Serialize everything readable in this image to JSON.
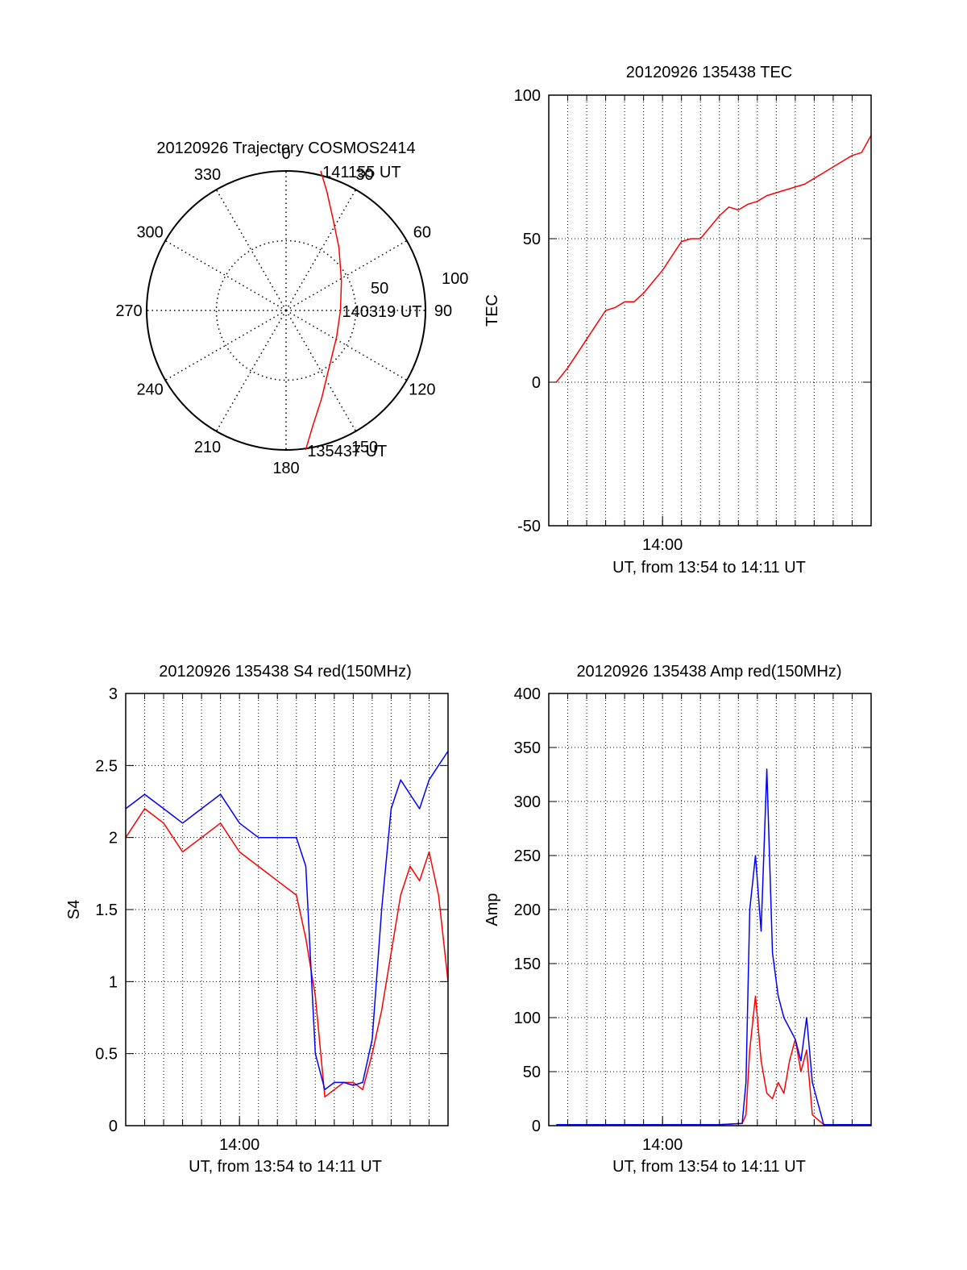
{
  "chart_data": [
    {
      "type": "polar",
      "title": "20120926 Trajectory COSMOS2414",
      "azimuth_labels": [
        "0",
        "30",
        "60",
        "90",
        "120",
        "150",
        "180",
        "210",
        "240",
        "270",
        "300",
        "330"
      ],
      "ring_labels": [
        "50",
        "100"
      ],
      "series": [
        {
          "color": "#ff0000",
          "points": [
            {
              "az": 172,
              "r": 101
            },
            {
              "az": 167,
              "r": 85
            },
            {
              "az": 158,
              "r": 68
            },
            {
              "az": 144,
              "r": 52
            },
            {
              "az": 118,
              "r": 41
            },
            {
              "az": 90,
              "r": 39
            },
            {
              "az": 62,
              "r": 45
            },
            {
              "az": 40,
              "r": 59
            },
            {
              "az": 27,
              "r": 74
            },
            {
              "az": 19,
              "r": 90
            },
            {
              "az": 14,
              "r": 103
            }
          ]
        }
      ],
      "annotations": [
        {
          "text": "141155 UT",
          "az": 14,
          "r": 103
        },
        {
          "text": "140319 UT",
          "az": 90,
          "r": 39
        },
        {
          "text": "135437 UT",
          "az": 172,
          "r": 101
        }
      ]
    },
    {
      "type": "line",
      "title": "20120926 135438 TEC",
      "xlabel": "UT, from 13:54 to 14:11 UT",
      "ylabel": "TEC",
      "xlim": [
        0,
        17
      ],
      "ylim": [
        -50,
        100
      ],
      "yticks": [
        -50,
        0,
        50,
        100
      ],
      "xtick_labels": [
        {
          "x": 6,
          "label": "14:00"
        }
      ],
      "grid": true,
      "series": [
        {
          "color": "#ff0000",
          "x": [
            0.4,
            1.0,
            1.5,
            2.0,
            2.5,
            3.0,
            3.5,
            4.0,
            4.5,
            5.0,
            5.5,
            6.0,
            6.5,
            7.0,
            7.5,
            8.0,
            8.5,
            9.0,
            9.5,
            10.0,
            10.5,
            11.0,
            11.5,
            12.0,
            12.5,
            13.0,
            13.5,
            14.0,
            14.5,
            15.0,
            15.5,
            16.0,
            16.5,
            17.0
          ],
          "y": [
            0,
            5,
            10,
            15,
            20,
            25,
            26,
            28,
            28,
            31,
            35,
            39,
            44,
            49,
            50,
            50,
            54,
            58,
            61,
            60,
            62,
            63,
            65,
            66,
            67,
            68,
            69,
            71,
            73,
            75,
            77,
            79,
            80,
            86
          ]
        }
      ]
    },
    {
      "type": "line",
      "title": "20120926 135438 S4 red(150MHz)",
      "xlabel": "UT, from 13:54 to 14:11 UT",
      "ylabel": "S4",
      "xlim": [
        0,
        17
      ],
      "ylim": [
        0,
        3
      ],
      "yticks": [
        0,
        0.5,
        1,
        1.5,
        2,
        2.5,
        3
      ],
      "xtick_labels": [
        {
          "x": 6,
          "label": "14:00"
        }
      ],
      "grid": true,
      "series": [
        {
          "color": "#ff0000",
          "x": [
            0,
            1,
            2,
            3,
            4,
            5,
            6,
            7,
            8,
            9,
            9.5,
            10,
            10.5,
            11,
            11.5,
            12,
            12.5,
            13,
            13.5,
            14,
            14.5,
            15,
            15.5,
            16,
            16.5,
            17
          ],
          "y": [
            2.0,
            2.2,
            2.1,
            1.9,
            2.0,
            2.1,
            1.9,
            1.8,
            1.7,
            1.6,
            1.3,
            0.9,
            0.2,
            0.25,
            0.3,
            0.3,
            0.25,
            0.5,
            0.8,
            1.2,
            1.6,
            1.8,
            1.7,
            1.9,
            1.6,
            1.0
          ]
        },
        {
          "color": "#0000ff",
          "x": [
            0,
            1,
            2,
            3,
            4,
            5,
            6,
            7,
            8,
            9,
            9.5,
            10,
            10.5,
            11,
            11.5,
            12,
            12.5,
            13,
            13.5,
            14,
            14.5,
            15,
            15.5,
            16,
            16.5,
            17
          ],
          "y": [
            2.2,
            2.3,
            2.2,
            2.1,
            2.2,
            2.3,
            2.1,
            2.0,
            2.0,
            2.0,
            1.8,
            0.5,
            0.25,
            0.3,
            0.3,
            0.28,
            0.3,
            0.6,
            1.5,
            2.2,
            2.4,
            2.3,
            2.2,
            2.4,
            2.5,
            2.6
          ]
        }
      ]
    },
    {
      "type": "line",
      "title": "20120926 135438 Amp red(150MHz)",
      "xlabel": "UT, from 13:54 to 14:11 UT",
      "ylabel": "Amp",
      "xlim": [
        0,
        17
      ],
      "ylim": [
        0,
        400
      ],
      "yticks": [
        0,
        50,
        100,
        150,
        200,
        250,
        300,
        350,
        400
      ],
      "xtick_labels": [
        {
          "x": 6,
          "label": "14:00"
        }
      ],
      "grid": true,
      "series": [
        {
          "color": "#ff0000",
          "x": [
            0.4,
            5,
            9,
            10.2,
            10.4,
            10.6,
            10.9,
            11.2,
            11.5,
            11.8,
            12.1,
            12.4,
            12.7,
            13.0,
            13.3,
            13.6,
            13.9,
            14.5,
            17
          ],
          "y": [
            1,
            1,
            1,
            2,
            10,
            70,
            120,
            60,
            30,
            25,
            40,
            30,
            60,
            80,
            50,
            70,
            10,
            1,
            1
          ]
        },
        {
          "color": "#0000ff",
          "x": [
            0.4,
            5,
            9,
            10.2,
            10.4,
            10.6,
            10.9,
            11.2,
            11.5,
            11.8,
            12.1,
            12.4,
            12.7,
            13.0,
            13.3,
            13.6,
            13.9,
            14.5,
            17
          ],
          "y": [
            1,
            1,
            1,
            2,
            40,
            200,
            250,
            180,
            330,
            160,
            120,
            100,
            90,
            80,
            60,
            100,
            40,
            1,
            1
          ]
        }
      ]
    }
  ]
}
